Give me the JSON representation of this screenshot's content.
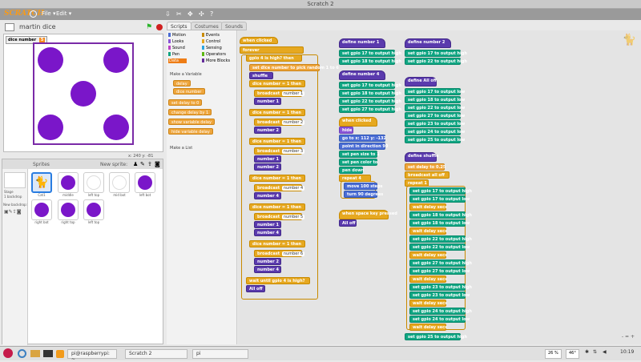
{
  "window": {
    "title": "Scratch 2"
  },
  "menubar": {
    "logo": "SCRATCH",
    "menus": [
      "File ▾",
      "Edit ▾"
    ],
    "tools": [
      "duplicate-icon",
      "delete-icon",
      "grow-icon",
      "shrink-icon",
      "help-icon"
    ]
  },
  "stage": {
    "title": "martin dice",
    "version": "v",
    "monitor": {
      "label": "dice number",
      "value": "5"
    },
    "coords": {
      "x_label": "x: 240",
      "y_label": "y: -81"
    }
  },
  "sprites": {
    "title": "Sprites",
    "new_sprite": "New sprite:",
    "stage_label": "Stage",
    "stage_sub": "1 backdrop",
    "new_backdrop": "New backdrop:",
    "items": [
      "Cat1",
      "middle",
      "left top",
      "mid bot",
      "left bot",
      "right bot",
      "right top",
      "left top"
    ]
  },
  "tabs": [
    "Scripts",
    "Costumes",
    "Sounds"
  ],
  "palette": {
    "categories": [
      {
        "name": "Motion",
        "color": "#4a6cd4"
      },
      {
        "name": "Events",
        "color": "#c88a00"
      },
      {
        "name": "Looks",
        "color": "#8a55d7"
      },
      {
        "name": "Control",
        "color": "#e6a820"
      },
      {
        "name": "Sound",
        "color": "#bb42c3"
      },
      {
        "name": "Sensing",
        "color": "#2ca5e2"
      },
      {
        "name": "Pen",
        "color": "#0fa582"
      },
      {
        "name": "Operators",
        "color": "#5cb712"
      },
      {
        "name": "Data",
        "color": "#ee7d16"
      },
      {
        "name": "More Blocks",
        "color": "#632d99"
      }
    ],
    "make_variable": "Make a Variable",
    "variables": [
      "delay",
      "dice number"
    ],
    "blocks": [
      "set delay to 0",
      "change delay by 1",
      "show variable delay",
      "hide variable delay"
    ],
    "make_list": "Make a List"
  },
  "scripts": {
    "main": {
      "hat": "when clicked",
      "forever": "forever",
      "if_gpio": "gpio 4 is high? then",
      "set_dice": "set dice number to pick random 1 to 6",
      "shuffle": "shuffle",
      "cond": "dice number = 1 then",
      "cond_vals": [
        "1",
        "2",
        "3",
        "4",
        "5",
        "6"
      ],
      "broadcast": "broadcast",
      "numbers": [
        "number 1",
        "number 2",
        "number 3",
        "number 4",
        "number 5",
        "number 6"
      ],
      "wait_until": "wait until gpio 4 is high?",
      "all_off": "All off"
    },
    "define1": {
      "title": "define number 1",
      "rows": [
        "set gpio 17 to output high",
        "set gpio 18 to output high"
      ]
    },
    "define2": {
      "title": "define number 2",
      "rows": [
        "set gpio 17 to output high",
        "set gpio 22 to output high"
      ]
    },
    "define4": {
      "title": "define number 4",
      "rows": [
        "set gpio 17 to output high",
        "set gpio 18 to output high",
        "set gpio 22 to output high",
        "set gpio 27 to output high"
      ]
    },
    "define_alloff": {
      "title": "define All off",
      "rows": [
        "set gpio 17 to output low",
        "set gpio 18 to output low",
        "set gpio 22 to output low",
        "set gpio 27 to output low",
        "set gpio 23 to output low",
        "set gpio 24 to output low",
        "set gpio 25 to output low"
      ]
    },
    "cat": {
      "hat": "when clicked",
      "rows": [
        "hide",
        "go to x: 112 y: -132",
        "point in direction 90",
        "set pen size to 1",
        "set pen color to",
        "pen down",
        "repeat 4",
        "move 100 steps",
        "turn 90 degrees"
      ]
    },
    "key": {
      "hat": "when space key pressed",
      "call": "All off"
    },
    "shuffle_def": {
      "title": "define shuffle",
      "rows": [
        "set delay to 0.25",
        "broadcast all off",
        "repeat 1",
        "set gpio 17 to output high",
        "set gpio 17 to output low",
        "wait delay secs",
        "set gpio 18 to output high",
        "set gpio 18 to output low",
        "wait delay secs",
        "set gpio 22 to output high",
        "set gpio 22 to output low",
        "wait delay secs",
        "set gpio 27 to output high",
        "set gpio 27 to output low",
        "wait delay secs",
        "set gpio 23 to output high",
        "set gpio 23 to output low",
        "wait delay secs",
        "set gpio 24 to output high",
        "set gpio 24 to output low",
        "wait delay secs",
        "set gpio 25 to output high"
      ]
    }
  },
  "zoom": {
    "minus": "-",
    "eq": "=",
    "plus": "+"
  },
  "taskbar": {
    "tasks": [
      "pi@raspberrypi: ~",
      "Scratch 2",
      "pi"
    ],
    "cpu": "26 %",
    "temp": "46°",
    "time": "10:19"
  }
}
